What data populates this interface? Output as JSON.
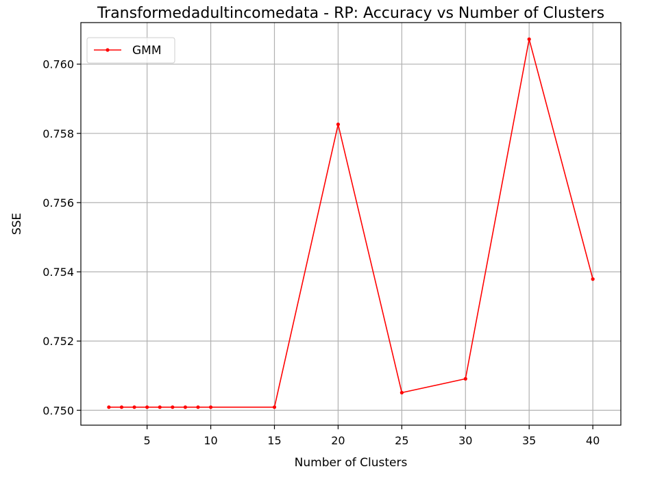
{
  "chart_data": {
    "type": "line",
    "title": "Transformedadultincomedata - RP: Accuracy vs Number of Clusters",
    "xlabel": "Number of Clusters",
    "ylabel": "SSE",
    "xlim": [
      -0.2,
      42.2
    ],
    "ylim": [
      0.74957,
      0.7612
    ],
    "xticks": [
      5,
      10,
      15,
      20,
      25,
      30,
      35,
      40
    ],
    "yticks": [
      0.75,
      0.752,
      0.754,
      0.756,
      0.758,
      0.76
    ],
    "ytick_labels": [
      "0.750",
      "0.752",
      "0.754",
      "0.756",
      "0.758",
      "0.760"
    ],
    "grid": true,
    "legend_position": "top-left",
    "series": [
      {
        "name": "GMM",
        "color": "#ff0000",
        "marker": "circle",
        "x": [
          2,
          3,
          4,
          5,
          6,
          7,
          8,
          9,
          10,
          15,
          20,
          25,
          30,
          35,
          40
        ],
        "y": [
          0.75009,
          0.75009,
          0.75009,
          0.75009,
          0.75009,
          0.75009,
          0.75009,
          0.75009,
          0.75009,
          0.75009,
          0.75826,
          0.75051,
          0.75091,
          0.76072,
          0.75379
        ]
      }
    ]
  }
}
